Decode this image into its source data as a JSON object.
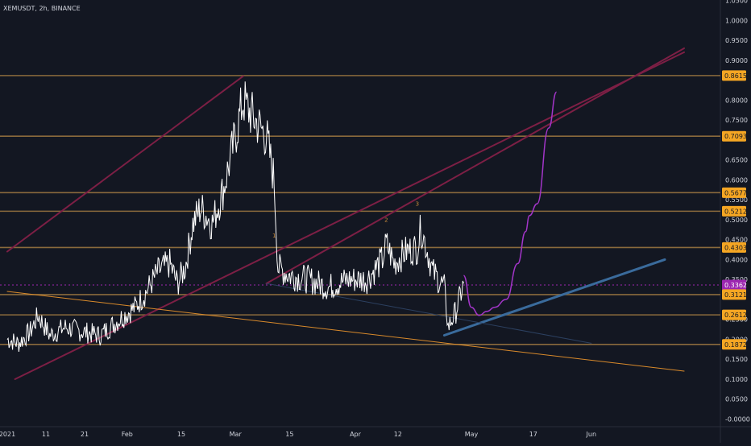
{
  "header": {
    "title": "XEMUSDT, 2h, BINANCE"
  },
  "colors": {
    "background": "#131722",
    "price": "#ffffff",
    "level_line": "#8a6a3c",
    "level_label_bg": "#f5a623",
    "current_price_bg": "#9c27b0",
    "channel": "#7d1f45",
    "trend_support": "#3a6b9c",
    "trend_orange": "#d98a2b",
    "projection": "#a335c9",
    "wave_label": "#c78a3a",
    "axis_text": "#d1d4dc"
  },
  "chart_data": {
    "type": "line",
    "title": "XEMUSDT, 2h, BINANCE",
    "x_ticks": [
      "2021",
      "11",
      "21",
      "Feb",
      "15",
      "Mar",
      "15",
      "Apr",
      "12",
      "May",
      "17",
      "Jun"
    ],
    "y_ticks": [
      "1.0500",
      "1.0000",
      "0.9500",
      "0.9000",
      "0.8000",
      "0.7500",
      "0.6500",
      "0.6000",
      "0.5500",
      "0.5000",
      "0.4500",
      "0.4000",
      "0.3500",
      "0.2500",
      "0.2000",
      "0.1500",
      "0.1000",
      "0.0500",
      "-0.0000"
    ],
    "ylim": [
      -0.03,
      1.07
    ],
    "price_series": {
      "name": "XEMUSDT",
      "x": [
        "2021-01-01",
        "2021-01-04",
        "2021-01-07",
        "2021-01-09",
        "2021-01-12",
        "2021-01-16",
        "2021-01-20",
        "2021-01-25",
        "2021-01-30",
        "2021-02-03",
        "2021-02-06",
        "2021-02-09",
        "2021-02-12",
        "2021-02-14",
        "2021-02-16",
        "2021-02-18",
        "2021-02-20",
        "2021-02-23",
        "2021-02-26",
        "2021-03-01",
        "2021-03-03",
        "2021-03-04",
        "2021-03-06",
        "2021-03-09",
        "2021-03-11",
        "2021-03-12",
        "2021-03-15",
        "2021-03-20",
        "2021-03-25",
        "2021-03-30",
        "2021-04-04",
        "2021-04-08",
        "2021-04-09",
        "2021-04-11",
        "2021-04-14",
        "2021-04-17",
        "2021-04-18",
        "2021-04-21",
        "2021-04-24",
        "2021-04-25",
        "2021-04-27",
        "2021-04-29"
      ],
      "y": [
        0.2,
        0.19,
        0.22,
        0.26,
        0.21,
        0.23,
        0.22,
        0.21,
        0.25,
        0.28,
        0.32,
        0.37,
        0.39,
        0.34,
        0.38,
        0.49,
        0.53,
        0.49,
        0.58,
        0.71,
        0.8,
        0.78,
        0.75,
        0.71,
        0.6,
        0.38,
        0.36,
        0.35,
        0.33,
        0.35,
        0.35,
        0.4,
        0.44,
        0.39,
        0.42,
        0.43,
        0.48,
        0.37,
        0.33,
        0.23,
        0.27,
        0.34
      ]
    },
    "projection_series": {
      "x": [
        "2021-04-29",
        "2021-05-01",
        "2021-05-03",
        "2021-05-05",
        "2021-05-07",
        "2021-05-10",
        "2021-05-13",
        "2021-05-15",
        "2021-05-16",
        "2021-05-18",
        "2021-05-21",
        "2021-05-23"
      ],
      "y": [
        0.36,
        0.28,
        0.26,
        0.27,
        0.28,
        0.3,
        0.39,
        0.47,
        0.51,
        0.54,
        0.73,
        0.82
      ]
    },
    "horizontal_levels": [
      0.8615,
      0.7093,
      0.5677,
      0.5212,
      0.4303,
      0.3121,
      0.2612,
      0.1872
    ],
    "price_labels": [
      "0.8615",
      "0.7093",
      "0.5677",
      "0.5212",
      "0.4303",
      "0.3362",
      "0.3121",
      "0.2612",
      "0.1872"
    ],
    "current_price": 0.3362,
    "wave_labels": [
      "1",
      "2",
      "3"
    ],
    "trend_lines": [
      {
        "kind": "channel",
        "x": [
          "2021-01-01",
          "2021-03-03"
        ],
        "y": [
          0.42,
          0.86
        ]
      },
      {
        "kind": "channel",
        "x": [
          "2021-01-03",
          "2021-06-25"
        ],
        "y": [
          0.1,
          0.92
        ]
      },
      {
        "kind": "channel",
        "x": [
          "2021-03-09",
          "2021-06-25"
        ],
        "y": [
          0.34,
          0.93
        ]
      },
      {
        "kind": "support",
        "x": [
          "2021-04-24",
          "2021-06-20"
        ],
        "y": [
          0.21,
          0.4
        ]
      },
      {
        "kind": "orange",
        "x": [
          "2021-01-01",
          "2021-06-25"
        ],
        "y": [
          0.32,
          0.12
        ]
      },
      {
        "kind": "faint",
        "x": [
          "2021-03-09",
          "2021-06-01"
        ],
        "y": [
          0.34,
          0.19
        ]
      }
    ],
    "grid": false,
    "xlabel": "",
    "ylabel": ""
  }
}
